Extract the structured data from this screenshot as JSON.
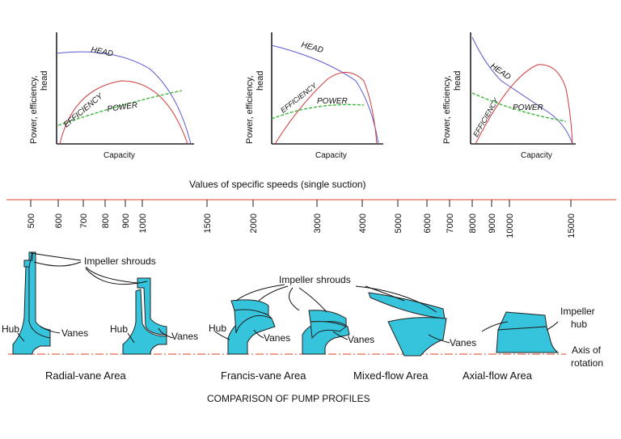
{
  "curve_colors": {
    "head": "#5a5ad0",
    "power": "#d03a3a",
    "efficiency": "#3cb83c"
  },
  "pump_fill": "#36c4dc",
  "pump_stroke": "#222222",
  "axis_line_color": "#e04020",
  "graphs": {
    "ylabel_line1": "Power, efficiency,",
    "ylabel_line2": "head",
    "xlabel": "Capacity",
    "head": "HEAD",
    "efficiency": "EFFICIENCY",
    "power": "POWER"
  },
  "speed_scale": {
    "title": "Values of specific speeds (single suction)",
    "ticks": [
      "500",
      "600",
      "700",
      "800",
      "900",
      "1000",
      "1500",
      "2000",
      "3000",
      "4000",
      "5000",
      "6000",
      "7000",
      "8000",
      "9000",
      "10000",
      "15000"
    ]
  },
  "labels": {
    "impeller_shrouds_1": "Impeller shrouds",
    "impeller_shrouds_2": "Impeller shrouds",
    "hub_1": "Hub",
    "vanes_1": "Vanes",
    "hub_2": "Hub",
    "vanes_2": "Vanes",
    "hub_3": "Hub",
    "vanes_3": "Vanes",
    "vanes_4": "Vanes",
    "vanes_5": "Vanes",
    "impeller_hub_line1": "Impeller",
    "impeller_hub_line2": "hub",
    "axis_line1": "Axis of",
    "axis_line2": "rotation"
  },
  "areas": {
    "radial": "Radial-vane Area",
    "francis": "Francis-vane Area",
    "mixed": "Mixed-flow Area",
    "axial": "Axial-flow Area"
  },
  "caption": "COMPARISON OF PUMP PROFILES"
}
